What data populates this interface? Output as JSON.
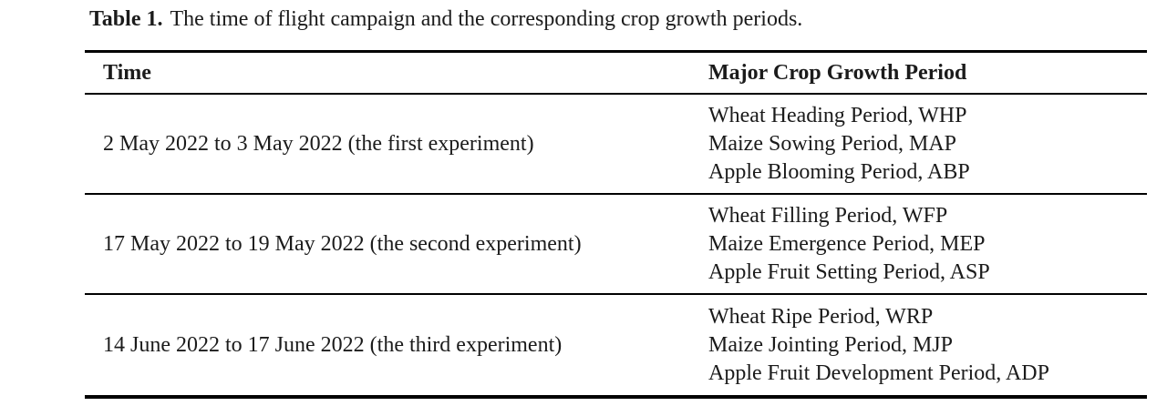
{
  "caption": {
    "label": "Table 1.",
    "text": "The time of flight campaign and the corresponding crop growth periods."
  },
  "table": {
    "columns": [
      "Time",
      "Major Crop Growth Period"
    ],
    "rows": [
      {
        "time": "2 May 2022 to 3 May 2022 (the first experiment)",
        "periods": [
          "Wheat Heading Period, WHP",
          "Maize Sowing Period, MAP",
          "Apple Blooming Period, ABP"
        ]
      },
      {
        "time": "17 May 2022 to 19 May 2022 (the second experiment)",
        "periods": [
          "Wheat Filling Period, WFP",
          "Maize Emergence Period, MEP",
          "Apple Fruit Setting Period, ASP"
        ]
      },
      {
        "time": "14 June 2022 to 17 June 2022 (the third experiment)",
        "periods": [
          "Wheat Ripe Period, WRP",
          "Maize Jointing Period, MJP",
          "Apple Fruit Development Period, ADP"
        ]
      }
    ]
  },
  "colors": {
    "text": "#1b1b1b",
    "rule": "#000000",
    "background": "#ffffff"
  }
}
